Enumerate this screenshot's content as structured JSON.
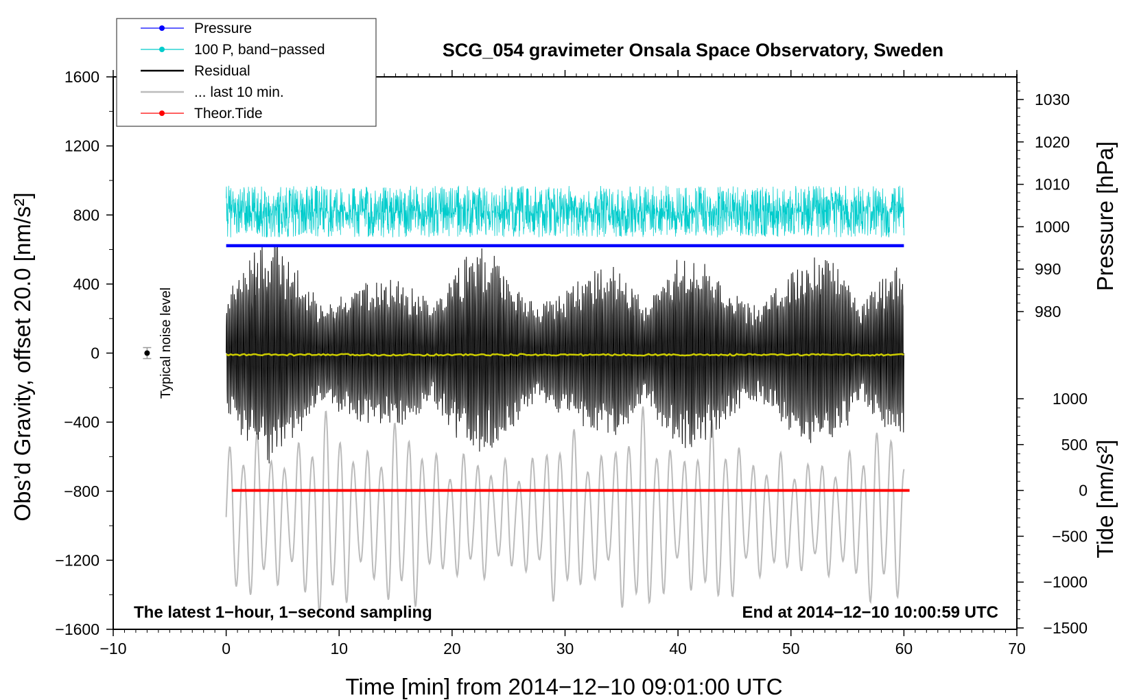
{
  "chart_data": {
    "type": "line",
    "title": "SCG_054 gravimeter Onsala Space Observatory, Sweden",
    "xlabel": "Time [min] from 2014−12−10 09:01:00 UTC",
    "ylabel_main": "Obs’d Gravity, offset 20.0 [nm/s²]",
    "ylabel_pressure": "Pressure [hPa]",
    "ylabel_tide": "Tide [nm/s²]",
    "note_left": "The latest 1−hour, 1−second sampling",
    "note_right": "End at 2014−12−10 10:00:59 UTC",
    "noise_label": "Typical noise level",
    "xlim": [
      -10,
      70
    ],
    "ylim": [
      -1600,
      1600
    ],
    "pressure_lim": [
      960,
      1037
    ],
    "tide_lim": [
      -1500,
      1500
    ],
    "x_ticks": [
      "−10",
      "0",
      "10",
      "20",
      "30",
      "40",
      "50",
      "60",
      "70"
    ],
    "x_tick_values": [
      -10,
      0,
      10,
      20,
      30,
      40,
      50,
      60,
      70
    ],
    "y_ticks": [
      "1600",
      "1200",
      "800",
      "400",
      "0",
      "−400",
      "−800",
      "−1200",
      "−1600"
    ],
    "y_tick_values": [
      1600,
      1200,
      800,
      400,
      0,
      -400,
      -800,
      -1200,
      -1600
    ],
    "pressure_ticks": [
      "1030",
      "1020",
      "1010",
      "1000",
      "990",
      "980"
    ],
    "pressure_tick_values": [
      1030,
      1020,
      1010,
      1000,
      990,
      980
    ],
    "tide_ticks": [
      "1000",
      "500",
      "0",
      "−500",
      "−1000",
      "−1500"
    ],
    "tide_tick_values": [
      1000,
      500,
      0,
      -500,
      -1000,
      -1500
    ],
    "legend": [
      {
        "label": "Pressure",
        "color": "#0000ff",
        "marker": true
      },
      {
        "label": "100 P, band−passed",
        "color": "#00cccc",
        "marker": true
      },
      {
        "label": "Residual",
        "color": "#000000",
        "marker": false
      },
      {
        "label": "... last 10 min.",
        "color": "#bbbbbb",
        "marker": false
      },
      {
        "label": "Theor.Tide",
        "color": "#ff0000",
        "marker": true
      }
    ],
    "series": [
      {
        "name": "Pressure",
        "color": "#0000ff",
        "axis": "pressure",
        "x_range": [
          0,
          60
        ],
        "value_hpa": 995.5
      },
      {
        "name": "100 P, band−passed",
        "color": "#00cccc",
        "axis": "gravity",
        "x_range": [
          0,
          60
        ],
        "center": 820,
        "amplitude": 120
      },
      {
        "name": "Residual",
        "color": "#000000",
        "axis": "gravity",
        "x_range": [
          0,
          60
        ],
        "center": 0,
        "amplitude_range": [
          150,
          700
        ]
      },
      {
        "name": "... last 10 min.",
        "color": "#bbbbbb",
        "axis": "gravity",
        "x_range": [
          0,
          60
        ],
        "center": -950,
        "amplitude_range": [
          150,
          650
        ]
      },
      {
        "name": "Theor.Tide",
        "color": "#ff0000",
        "axis": "tide",
        "x_range": [
          0.5,
          60.5
        ],
        "value": 0
      },
      {
        "name": "Residual mean",
        "color": "#cccc00",
        "axis": "gravity",
        "x_range": [
          0,
          60
        ],
        "value": -10
      }
    ],
    "noise_level": {
      "x": -7,
      "y": 0,
      "error": 15
    }
  }
}
